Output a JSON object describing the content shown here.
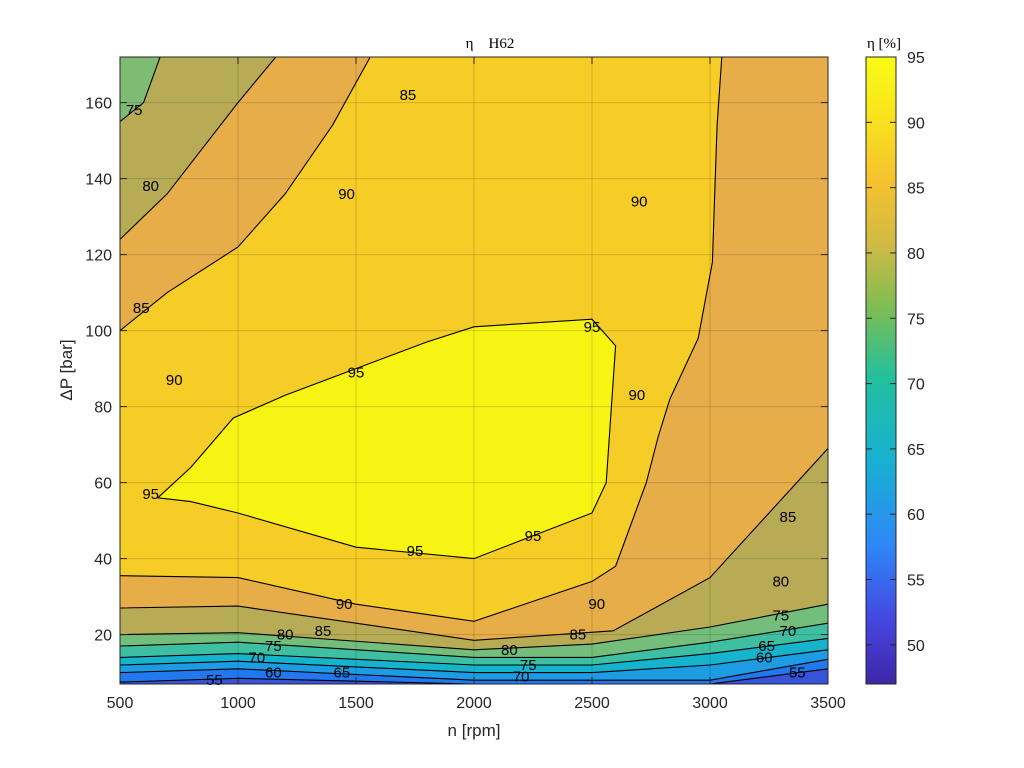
{
  "chart_data": {
    "type": "contour",
    "title": "η    H62",
    "xlabel": "n [rpm]",
    "ylabel": "ΔP [bar]",
    "xlim": [
      500,
      3500
    ],
    "ylim": [
      7,
      172
    ],
    "x_ticks": [
      "500",
      "1000",
      "1500",
      "2000",
      "2500",
      "3000",
      "3500"
    ],
    "y_ticks": [
      "20",
      "40",
      "60",
      "80",
      "100",
      "120",
      "140",
      "160"
    ],
    "grid": true,
    "colorbar": {
      "title": "η [%]",
      "range": [
        47,
        95
      ],
      "ticks": [
        "50",
        "55",
        "60",
        "65",
        "70",
        "75",
        "80",
        "85",
        "90",
        "95"
      ],
      "colormap": [
        "#3e26a8",
        "#4546e0",
        "#2e87f7",
        "#18b1d0",
        "#23c09d",
        "#7ebd53",
        "#d0ba44",
        "#f5c12f",
        "#f9e51c",
        "#f9fb15"
      ]
    },
    "contour_levels": [
      50,
      55,
      60,
      65,
      70,
      75,
      80,
      85,
      90,
      95
    ],
    "contour_labels": [
      {
        "level": "95",
        "x": 630,
        "y": 57
      },
      {
        "level": "95",
        "x": 1500,
        "y": 89
      },
      {
        "level": "95",
        "x": 2500,
        "y": 101
      },
      {
        "level": "95",
        "x": 1750,
        "y": 42
      },
      {
        "level": "95",
        "x": 2250,
        "y": 46
      },
      {
        "level": "90",
        "x": 730,
        "y": 87
      },
      {
        "level": "90",
        "x": 1460,
        "y": 136
      },
      {
        "level": "90",
        "x": 2700,
        "y": 134
      },
      {
        "level": "90",
        "x": 2690,
        "y": 83
      },
      {
        "level": "90",
        "x": 1450,
        "y": 28
      },
      {
        "level": "90",
        "x": 2520,
        "y": 28
      },
      {
        "level": "85",
        "x": 590,
        "y": 106
      },
      {
        "level": "85",
        "x": 1720,
        "y": 162
      },
      {
        "level": "85",
        "x": 1360,
        "y": 21
      },
      {
        "level": "85",
        "x": 2440,
        "y": 20
      },
      {
        "level": "85",
        "x": 3330,
        "y": 51
      },
      {
        "level": "80",
        "x": 630,
        "y": 138
      },
      {
        "level": "80",
        "x": 1200,
        "y": 20
      },
      {
        "level": "80",
        "x": 2150,
        "y": 16
      },
      {
        "level": "80",
        "x": 3300,
        "y": 34
      },
      {
        "level": "75",
        "x": 560,
        "y": 158
      },
      {
        "level": "75",
        "x": 1150,
        "y": 17
      },
      {
        "level": "75",
        "x": 2230,
        "y": 12
      },
      {
        "level": "75",
        "x": 3300,
        "y": 25
      },
      {
        "level": "70",
        "x": 1080,
        "y": 14
      },
      {
        "level": "70",
        "x": 2200,
        "y": 9
      },
      {
        "level": "70",
        "x": 3330,
        "y": 21
      },
      {
        "level": "65",
        "x": 1440,
        "y": 10
      },
      {
        "level": "65",
        "x": 3240,
        "y": 17
      },
      {
        "level": "60",
        "x": 1150,
        "y": 10
      },
      {
        "level": "60",
        "x": 3230,
        "y": 14
      },
      {
        "level": "55",
        "x": 900,
        "y": 8
      },
      {
        "level": "55",
        "x": 3370,
        "y": 10
      }
    ],
    "contours": [
      {
        "level": 55,
        "points": [
          [
            500,
            7.5
          ],
          [
            1000,
            8.5
          ],
          [
            2000,
            7
          ],
          [
            2500,
            7
          ],
          [
            3000,
            7
          ],
          [
            3500,
            11
          ]
        ]
      },
      {
        "level": 60,
        "points": [
          [
            500,
            10
          ],
          [
            1000,
            11
          ],
          [
            2000,
            8
          ],
          [
            3000,
            8
          ],
          [
            3500,
            13.5
          ]
        ]
      },
      {
        "level": 65,
        "points": [
          [
            500,
            12
          ],
          [
            1000,
            13
          ],
          [
            2000,
            10
          ],
          [
            2500,
            10
          ],
          [
            3000,
            12
          ],
          [
            3500,
            16
          ]
        ]
      },
      {
        "level": 70,
        "points": [
          [
            500,
            14
          ],
          [
            1000,
            15
          ],
          [
            2000,
            12
          ],
          [
            2500,
            12
          ],
          [
            3000,
            15
          ],
          [
            3500,
            19
          ]
        ]
      },
      {
        "level": 75,
        "points": [
          [
            500,
            17
          ],
          [
            1000,
            18
          ],
          [
            2000,
            14
          ],
          [
            2500,
            14
          ],
          [
            3000,
            18
          ],
          [
            3500,
            23
          ]
        ]
      },
      {
        "level": 80,
        "points": [
          [
            500,
            155
          ],
          [
            600,
            160
          ],
          [
            670,
            172
          ]
        ]
      },
      {
        "level": 80,
        "points": [
          [
            500,
            20
          ],
          [
            1000,
            20.5
          ],
          [
            2000,
            16
          ],
          [
            2500,
            17.5
          ],
          [
            3000,
            22
          ],
          [
            3500,
            28
          ]
        ]
      },
      {
        "level": 85,
        "points": [
          [
            500,
            124
          ],
          [
            700,
            136
          ],
          [
            850,
            148
          ],
          [
            1000,
            160
          ],
          [
            1160,
            172
          ]
        ]
      },
      {
        "level": 85,
        "points": [
          [
            500,
            27
          ],
          [
            1000,
            27.5
          ],
          [
            2000,
            18.5
          ],
          [
            2590,
            21
          ],
          [
            3000,
            35
          ],
          [
            3500,
            69
          ]
        ]
      },
      {
        "level": 90,
        "points": [
          [
            500,
            100
          ],
          [
            700,
            110
          ],
          [
            1000,
            122
          ],
          [
            1200,
            136
          ],
          [
            1400,
            154
          ],
          [
            1560,
            172
          ]
        ]
      },
      {
        "level": 90,
        "points": [
          [
            3050,
            172
          ],
          [
            3030,
            154
          ],
          [
            3020,
            136
          ],
          [
            3010,
            118
          ],
          [
            2950,
            98
          ],
          [
            2830,
            82
          ],
          [
            2780,
            72
          ],
          [
            2730,
            60
          ],
          [
            2600,
            38
          ],
          [
            2500,
            34
          ],
          [
            2000,
            23.5
          ],
          [
            1500,
            28
          ],
          [
            1000,
            35
          ],
          [
            500,
            35.5
          ]
        ]
      },
      {
        "level": 95,
        "points": [
          [
            660,
            56
          ],
          [
            800,
            64
          ],
          [
            980,
            77
          ],
          [
            1200,
            83
          ],
          [
            1500,
            90
          ],
          [
            1800,
            97
          ],
          [
            2000,
            101
          ],
          [
            2500,
            103
          ],
          [
            2600,
            96
          ],
          [
            2580,
            78
          ],
          [
            2560,
            60
          ],
          [
            2500,
            52
          ],
          [
            2000,
            40
          ],
          [
            1500,
            43
          ],
          [
            1000,
            52
          ],
          [
            800,
            55
          ],
          [
            660,
            56
          ]
        ]
      }
    ],
    "fills": [
      {
        "level": 90,
        "points": [
          [
            500,
            35.5
          ],
          [
            1000,
            35
          ],
          [
            1500,
            28
          ],
          [
            2000,
            23.5
          ],
          [
            2500,
            34
          ],
          [
            2600,
            38
          ],
          [
            2730,
            60
          ],
          [
            2780,
            72
          ],
          [
            2830,
            82
          ],
          [
            2950,
            98
          ],
          [
            3010,
            118
          ],
          [
            3020,
            136
          ],
          [
            3030,
            154
          ],
          [
            3050,
            172
          ],
          [
            1560,
            172
          ],
          [
            1400,
            154
          ],
          [
            1200,
            136
          ],
          [
            1000,
            122
          ],
          [
            700,
            110
          ],
          [
            500,
            100
          ]
        ]
      },
      {
        "level": 95,
        "points": [
          [
            660,
            56
          ],
          [
            800,
            64
          ],
          [
            980,
            77
          ],
          [
            1200,
            83
          ],
          [
            1500,
            90
          ],
          [
            1800,
            97
          ],
          [
            2000,
            101
          ],
          [
            2500,
            103
          ],
          [
            2600,
            96
          ],
          [
            2580,
            78
          ],
          [
            2560,
            60
          ],
          [
            2500,
            52
          ],
          [
            2000,
            40
          ],
          [
            1500,
            43
          ],
          [
            1000,
            52
          ],
          [
            800,
            55
          ]
        ]
      }
    ]
  }
}
